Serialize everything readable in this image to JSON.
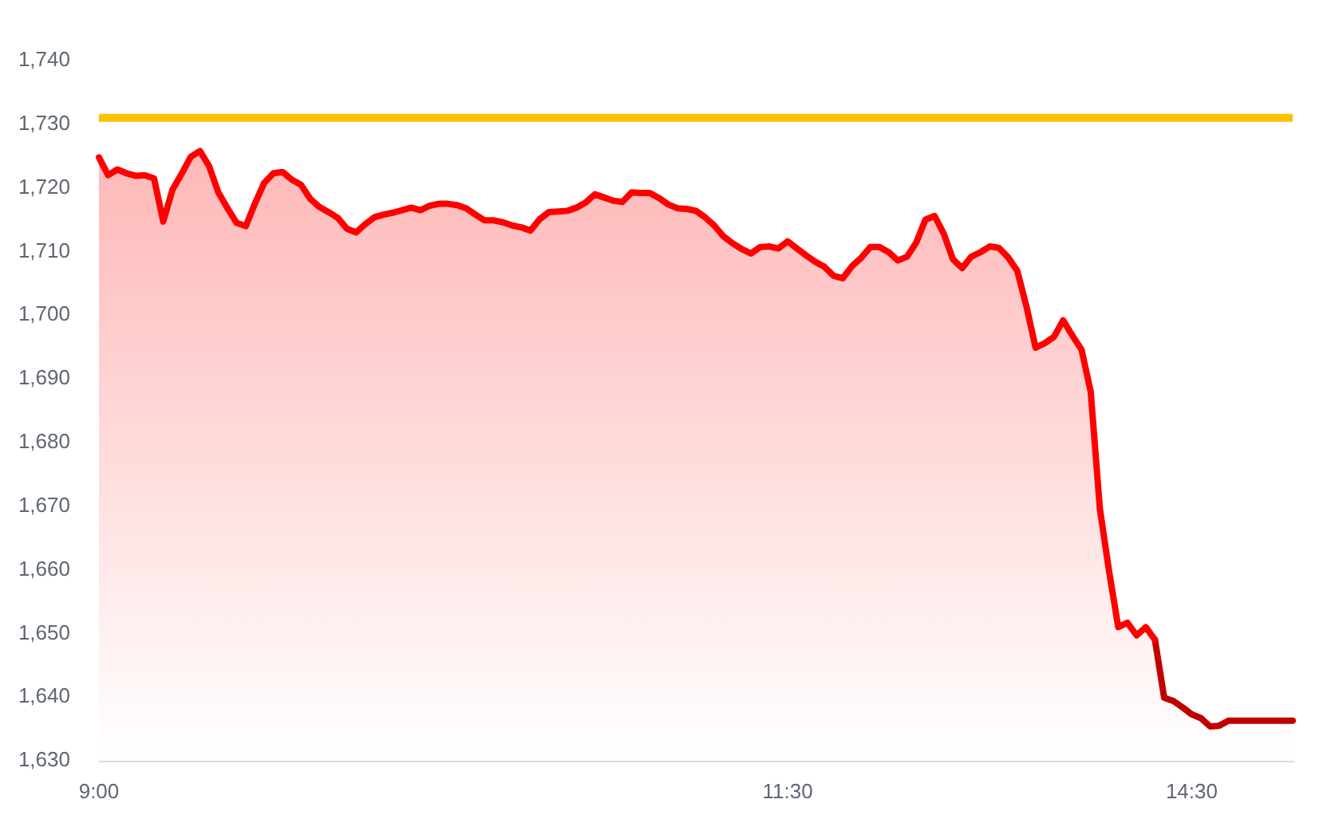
{
  "chart_data": {
    "type": "area",
    "categories": [
      "9:00",
      null,
      null,
      null,
      null,
      null,
      null,
      null,
      null,
      null,
      null,
      null,
      null,
      null,
      null,
      null,
      null,
      null,
      null,
      null,
      null,
      null,
      null,
      null,
      null,
      null,
      null,
      null,
      null,
      null,
      null,
      null,
      null,
      null,
      null,
      null,
      null,
      null,
      null,
      null,
      null,
      null,
      null,
      null,
      null,
      null,
      null,
      null,
      null,
      null,
      null,
      null,
      null,
      null,
      null,
      null,
      null,
      null,
      null,
      null,
      null,
      null,
      null,
      null,
      null,
      null,
      null,
      null,
      null,
      null,
      null,
      null,
      null,
      null,
      null,
      "11:30",
      null,
      null,
      null,
      null,
      null,
      null,
      null,
      null,
      null,
      null,
      null,
      null,
      null,
      null,
      null,
      null,
      null,
      null,
      null,
      null,
      null,
      null,
      null,
      null,
      null,
      null,
      null,
      null,
      null,
      null,
      null,
      null,
      null,
      null,
      null,
      null,
      null,
      null,
      null,
      null,
      null,
      null,
      null,
      "14:30",
      null,
      null,
      null,
      null,
      null,
      null,
      null,
      null,
      null,
      null,
      null
    ],
    "series": [
      {
        "color": "#ff0000",
        "values": [
          1724.8,
          1722.0,
          1722.9,
          1722.3,
          1721.9,
          1722.0,
          1721.5,
          1714.7,
          1719.7,
          1722.2,
          1724.9,
          1725.8,
          1723.4,
          1719.3,
          1716.8,
          1714.5,
          1714.0,
          1717.6,
          1720.8,
          1722.3,
          1722.5,
          1721.3,
          1720.5,
          1718.3,
          1717.0,
          1716.2,
          1715.3,
          1713.6,
          1713.0,
          1714.3,
          1715.4,
          1715.8,
          1716.1,
          1716.5,
          1716.9,
          1716.5,
          1717.2,
          1717.5,
          1717.5,
          1717.3,
          1716.8,
          1715.8,
          1714.9,
          1714.9,
          1714.6,
          1714.1,
          1713.8,
          1713.3,
          1715.1,
          1716.2,
          1716.3,
          1716.4,
          1716.9,
          1717.7,
          1719.0,
          1718.5,
          1718.0,
          1717.8,
          1719.3,
          1719.2,
          1719.2,
          1718.4,
          1717.4,
          1716.8,
          1716.7,
          1716.4,
          1715.4,
          1714.1,
          1712.4,
          1711.3,
          1710.4,
          1709.7,
          1710.7,
          1710.8,
          1710.5,
          1711.6,
          1710.5,
          1709.4,
          1708.4,
          1707.6,
          1706.2,
          1705.8,
          1707.7,
          1709.0,
          1710.7,
          1710.7,
          1709.9,
          1708.6,
          1709.2,
          1711.4,
          1715.0,
          1715.6,
          1712.8,
          1708.8,
          1707.4,
          1709.2,
          1709.9,
          1710.8,
          1710.6,
          1709.1,
          1707.0,
          1701.4,
          1694.9,
          1695.6,
          1696.6,
          1699.2,
          1696.8,
          1694.6,
          1688.0,
          1669.6,
          1659.8,
          1651.0,
          1651.7,
          1649.7,
          1651.0,
          1649.0,
          null,
          null,
          null,
          null,
          null,
          null,
          null,
          null,
          null,
          null,
          null,
          null,
          null,
          null,
          null
        ]
      },
      {
        "color": "#c00000",
        "values": [
          null,
          null,
          null,
          null,
          null,
          null,
          null,
          null,
          null,
          null,
          null,
          null,
          null,
          null,
          null,
          null,
          null,
          null,
          null,
          null,
          null,
          null,
          null,
          null,
          null,
          null,
          null,
          null,
          null,
          null,
          null,
          null,
          null,
          null,
          null,
          null,
          null,
          null,
          null,
          null,
          null,
          null,
          null,
          null,
          null,
          null,
          null,
          null,
          null,
          null,
          null,
          null,
          null,
          null,
          null,
          null,
          null,
          null,
          null,
          null,
          null,
          null,
          null,
          null,
          null,
          null,
          null,
          null,
          null,
          null,
          null,
          null,
          null,
          null,
          null,
          null,
          null,
          null,
          null,
          null,
          null,
          null,
          null,
          null,
          null,
          null,
          null,
          null,
          null,
          null,
          null,
          null,
          null,
          null,
          null,
          null,
          null,
          null,
          null,
          null,
          null,
          null,
          null,
          null,
          null,
          null,
          null,
          null,
          null,
          null,
          null,
          null,
          null,
          null,
          null,
          1649.0,
          1639.9,
          1639.4,
          1638.4,
          1637.3,
          1636.7,
          1635.4,
          1635.5,
          1636.3,
          1636.3,
          1636.3,
          1636.3,
          1636.3,
          1636.3,
          1636.3,
          1636.3
        ]
      }
    ],
    "ylim": [
      1630,
      1740
    ],
    "yticks": [
      {
        "value": 1630,
        "label": "1,630"
      },
      {
        "value": 1640,
        "label": "1,640"
      },
      {
        "value": 1650,
        "label": "1,650"
      },
      {
        "value": 1660,
        "label": "1,660"
      },
      {
        "value": 1670,
        "label": "1,670"
      },
      {
        "value": 1680,
        "label": "1,680"
      },
      {
        "value": 1690,
        "label": "1,690"
      },
      {
        "value": 1700,
        "label": "1,700"
      },
      {
        "value": 1710,
        "label": "1,710"
      },
      {
        "value": 1720,
        "label": "1,720"
      },
      {
        "value": 1730,
        "label": "1,730"
      },
      {
        "value": 1740,
        "label": "1,740"
      }
    ],
    "ref_lines": [
      {
        "axis": "y",
        "value": 1731,
        "color": "#ffc000"
      }
    ],
    "grid": false,
    "legend": false,
    "marker": "none",
    "line_style": "solid"
  }
}
